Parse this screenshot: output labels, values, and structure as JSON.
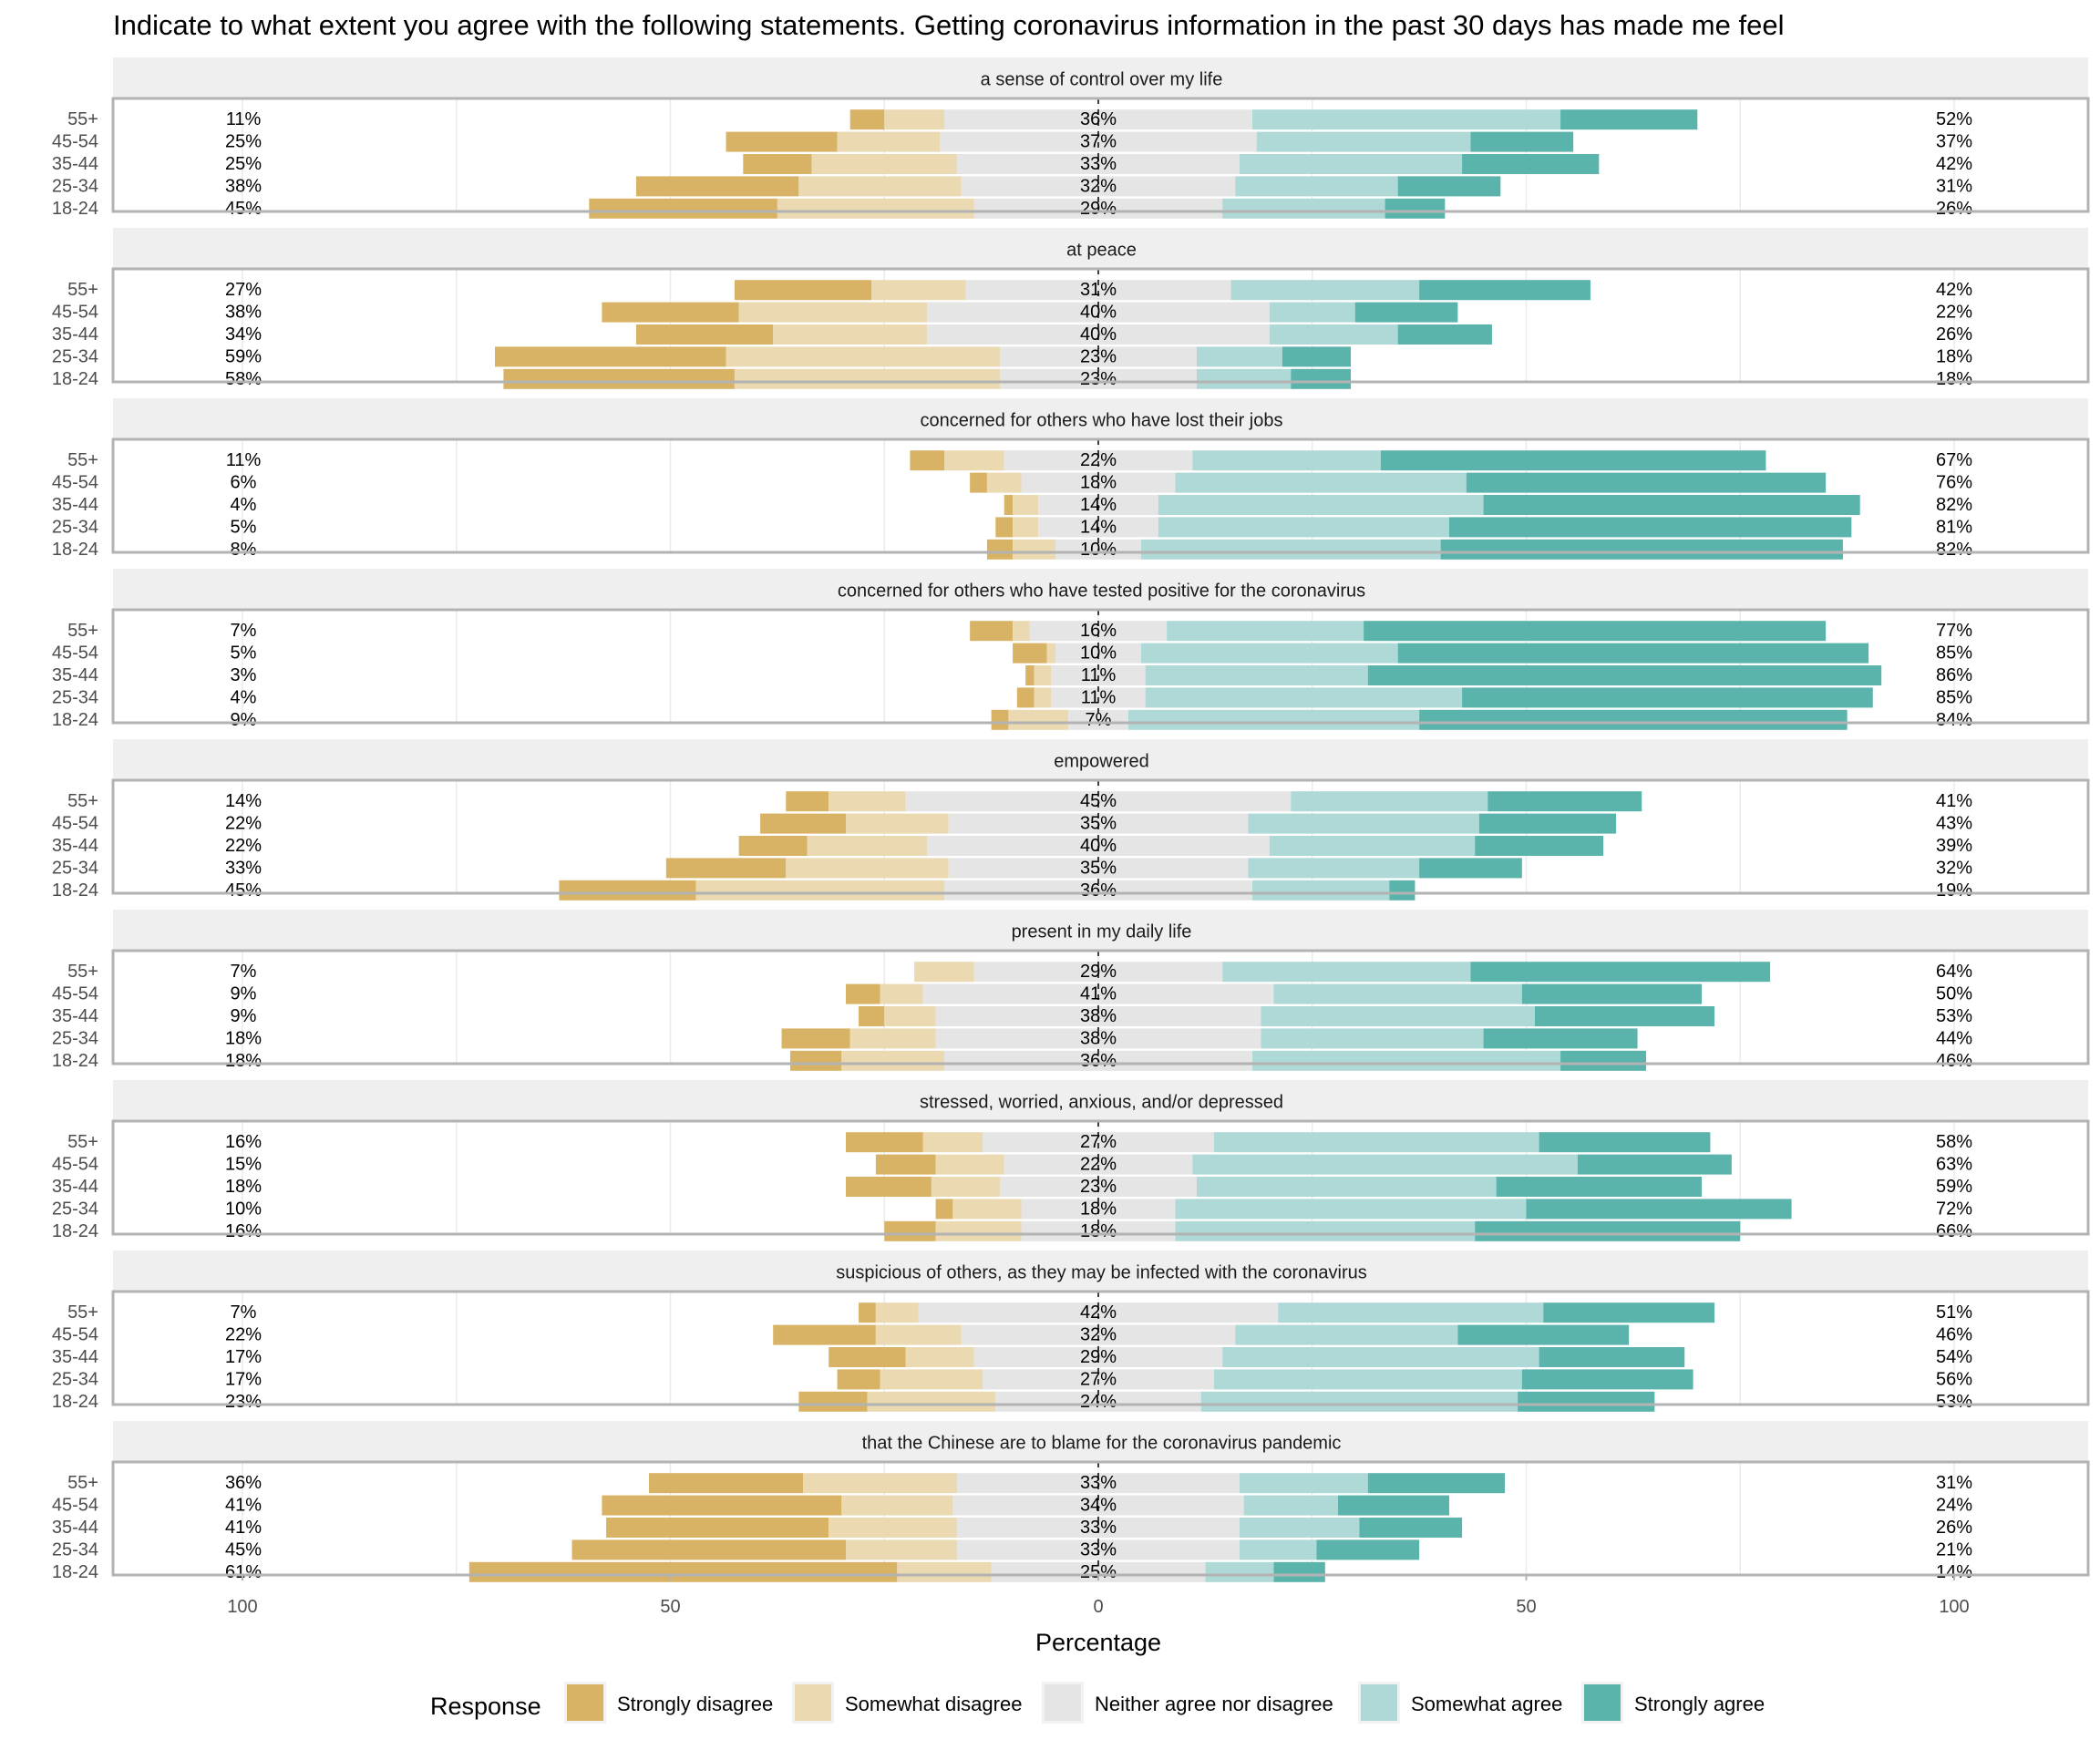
{
  "chart_data": {
    "type": "bar",
    "orientation": "horizontal-diverging-stacked",
    "title": "Indicate to what extent you agree with the following statements. Getting coronavirus information in the past 30 days has made me feel",
    "xlabel": "Percentage",
    "ylabel": "",
    "xlim": [
      -100,
      100
    ],
    "x_ticks": [
      -100,
      -50,
      0,
      50,
      100
    ],
    "x_tick_labels": [
      "100",
      "50",
      "0",
      "50",
      "100"
    ],
    "grid": true,
    "legend": {
      "title": "Response",
      "position": "bottom",
      "entries": [
        "Strongly disagree",
        "Somewhat disagree",
        "Neither agree nor disagree",
        "Somewhat agree",
        "Strongly agree"
      ]
    },
    "colors": {
      "Strongly disagree": "#d8b365",
      "Somewhat disagree": "#ebd9b2",
      "Neither agree nor disagree": "#e5e5e5",
      "Somewhat agree": "#aed9d6",
      "Strongly agree": "#5ab4ac"
    },
    "categories": [
      "55+",
      "45-54",
      "35-44",
      "25-34",
      "18-24"
    ],
    "panels": [
      {
        "label": "a sense of control over my life",
        "rows": [
          {
            "group": "55+",
            "values": [
              4,
              7,
              36,
              36,
              16
            ],
            "left_label": "11%",
            "center_label": "36%",
            "right_label": "52%"
          },
          {
            "group": "45-54",
            "values": [
              13,
              12,
              37,
              25,
              12
            ],
            "left_label": "25%",
            "center_label": "37%",
            "right_label": "37%"
          },
          {
            "group": "35-44",
            "values": [
              8,
              17,
              33,
              26,
              16
            ],
            "left_label": "25%",
            "center_label": "33%",
            "right_label": "42%"
          },
          {
            "group": "25-34",
            "values": [
              19,
              19,
              32,
              19,
              12
            ],
            "left_label": "38%",
            "center_label": "32%",
            "right_label": "31%"
          },
          {
            "group": "18-24",
            "values": [
              22,
              23,
              29,
              19,
              7
            ],
            "left_label": "45%",
            "center_label": "29%",
            "right_label": "26%"
          }
        ]
      },
      {
        "label": "at peace",
        "rows": [
          {
            "group": "55+",
            "values": [
              16,
              11,
              31,
              22,
              20
            ],
            "left_label": "27%",
            "center_label": "31%",
            "right_label": "42%"
          },
          {
            "group": "45-54",
            "values": [
              16,
              22,
              40,
              10,
              12
            ],
            "left_label": "38%",
            "center_label": "40%",
            "right_label": "22%"
          },
          {
            "group": "35-44",
            "values": [
              16,
              18,
              40,
              15,
              11
            ],
            "left_label": "34%",
            "center_label": "40%",
            "right_label": "26%"
          },
          {
            "group": "25-34",
            "values": [
              27,
              32,
              23,
              10,
              8
            ],
            "left_label": "59%",
            "center_label": "23%",
            "right_label": "18%"
          },
          {
            "group": "18-24",
            "values": [
              27,
              31,
              23,
              11,
              7
            ],
            "left_label": "58%",
            "center_label": "23%",
            "right_label": "18%"
          }
        ]
      },
      {
        "label": "concerned for others who have lost their jobs",
        "rows": [
          {
            "group": "55+",
            "values": [
              4,
              7,
              22,
              22,
              45
            ],
            "left_label": "11%",
            "center_label": "22%",
            "right_label": "67%"
          },
          {
            "group": "45-54",
            "values": [
              2,
              4,
              18,
              34,
              42
            ],
            "left_label": "6%",
            "center_label": "18%",
            "right_label": "76%"
          },
          {
            "group": "35-44",
            "values": [
              1,
              3,
              14,
              38,
              44
            ],
            "left_label": "4%",
            "center_label": "14%",
            "right_label": "82%"
          },
          {
            "group": "25-34",
            "values": [
              2,
              3,
              14,
              34,
              47
            ],
            "left_label": "5%",
            "center_label": "14%",
            "right_label": "81%"
          },
          {
            "group": "18-24",
            "values": [
              3,
              5,
              10,
              35,
              47
            ],
            "left_label": "8%",
            "center_label": "10%",
            "right_label": "82%"
          }
        ]
      },
      {
        "label": "concerned for others who have tested positive for the coronavirus",
        "rows": [
          {
            "group": "55+",
            "values": [
              5,
              2,
              16,
              23,
              54
            ],
            "left_label": "7%",
            "center_label": "16%",
            "right_label": "77%"
          },
          {
            "group": "45-54",
            "values": [
              4,
              1,
              10,
              30,
              55
            ],
            "left_label": "5%",
            "center_label": "10%",
            "right_label": "85%"
          },
          {
            "group": "35-44",
            "values": [
              1,
              2,
              11,
              26,
              60
            ],
            "left_label": "3%",
            "center_label": "11%",
            "right_label": "86%"
          },
          {
            "group": "25-34",
            "values": [
              2,
              2,
              11,
              37,
              48
            ],
            "left_label": "4%",
            "center_label": "11%",
            "right_label": "85%"
          },
          {
            "group": "18-24",
            "values": [
              2,
              7,
              7,
              34,
              50
            ],
            "left_label": "9%",
            "center_label": "7%",
            "right_label": "84%"
          }
        ]
      },
      {
        "label": "empowered",
        "rows": [
          {
            "group": "55+",
            "values": [
              5,
              9,
              45,
              23,
              18
            ],
            "left_label": "14%",
            "center_label": "45%",
            "right_label": "41%"
          },
          {
            "group": "45-54",
            "values": [
              10,
              12,
              35,
              27,
              16
            ],
            "left_label": "22%",
            "center_label": "35%",
            "right_label": "43%"
          },
          {
            "group": "35-44",
            "values": [
              8,
              14,
              40,
              24,
              15
            ],
            "left_label": "22%",
            "center_label": "40%",
            "right_label": "39%"
          },
          {
            "group": "25-34",
            "values": [
              14,
              19,
              35,
              20,
              12
            ],
            "left_label": "33%",
            "center_label": "35%",
            "right_label": "32%"
          },
          {
            "group": "18-24",
            "values": [
              16,
              29,
              36,
              16,
              3
            ],
            "left_label": "45%",
            "center_label": "36%",
            "right_label": "19%"
          }
        ]
      },
      {
        "label": "present in my daily life",
        "rows": [
          {
            "group": "55+",
            "values": [
              0,
              7,
              29,
              29,
              35
            ],
            "left_label": "7%",
            "center_label": "29%",
            "right_label": "64%"
          },
          {
            "group": "45-54",
            "values": [
              4,
              5,
              41,
              29,
              21
            ],
            "left_label": "9%",
            "center_label": "41%",
            "right_label": "50%"
          },
          {
            "group": "35-44",
            "values": [
              3,
              6,
              38,
              32,
              21
            ],
            "left_label": "9%",
            "center_label": "38%",
            "right_label": "53%"
          },
          {
            "group": "25-34",
            "values": [
              8,
              10,
              38,
              26,
              18
            ],
            "left_label": "18%",
            "center_label": "38%",
            "right_label": "44%"
          },
          {
            "group": "18-24",
            "values": [
              6,
              12,
              36,
              36,
              10
            ],
            "left_label": "18%",
            "center_label": "36%",
            "right_label": "46%"
          }
        ]
      },
      {
        "label": "stressed, worried, anxious, and/or depressed",
        "rows": [
          {
            "group": "55+",
            "values": [
              9,
              7,
              27,
              38,
              20
            ],
            "left_label": "16%",
            "center_label": "27%",
            "right_label": "58%"
          },
          {
            "group": "45-54",
            "values": [
              7,
              8,
              22,
              45,
              18
            ],
            "left_label": "15%",
            "center_label": "22%",
            "right_label": "63%"
          },
          {
            "group": "35-44",
            "values": [
              10,
              8,
              23,
              35,
              24
            ],
            "left_label": "18%",
            "center_label": "23%",
            "right_label": "59%"
          },
          {
            "group": "25-34",
            "values": [
              2,
              8,
              18,
              41,
              31
            ],
            "left_label": "10%",
            "center_label": "18%",
            "right_label": "72%"
          },
          {
            "group": "18-24",
            "values": [
              6,
              10,
              18,
              35,
              31
            ],
            "left_label": "16%",
            "center_label": "18%",
            "right_label": "66%"
          }
        ]
      },
      {
        "label": "suspicious of others, as they may be infected with the coronavirus",
        "rows": [
          {
            "group": "55+",
            "values": [
              2,
              5,
              42,
              31,
              20
            ],
            "left_label": "7%",
            "center_label": "42%",
            "right_label": "51%"
          },
          {
            "group": "45-54",
            "values": [
              12,
              10,
              32,
              26,
              20
            ],
            "left_label": "22%",
            "center_label": "32%",
            "right_label": "46%"
          },
          {
            "group": "35-44",
            "values": [
              9,
              8,
              29,
              37,
              17
            ],
            "left_label": "17%",
            "center_label": "29%",
            "right_label": "54%"
          },
          {
            "group": "25-34",
            "values": [
              5,
              12,
              27,
              36,
              20
            ],
            "left_label": "17%",
            "center_label": "27%",
            "right_label": "56%"
          },
          {
            "group": "18-24",
            "values": [
              8,
              15,
              24,
              37,
              16
            ],
            "left_label": "23%",
            "center_label": "24%",
            "right_label": "53%"
          }
        ]
      },
      {
        "label": "that the Chinese are to blame for the coronavirus pandemic",
        "rows": [
          {
            "group": "55+",
            "values": [
              18,
              18,
              33,
              15,
              16
            ],
            "left_label": "36%",
            "center_label": "33%",
            "right_label": "31%"
          },
          {
            "group": "45-54",
            "values": [
              28,
              13,
              34,
              11,
              13
            ],
            "left_label": "41%",
            "center_label": "34%",
            "right_label": "24%"
          },
          {
            "group": "35-44",
            "values": [
              26,
              15,
              33,
              14,
              12
            ],
            "left_label": "41%",
            "center_label": "33%",
            "right_label": "26%"
          },
          {
            "group": "25-34",
            "values": [
              32,
              13,
              33,
              9,
              12
            ],
            "left_label": "45%",
            "center_label": "33%",
            "right_label": "21%"
          },
          {
            "group": "18-24",
            "values": [
              50,
              11,
              25,
              8,
              6
            ],
            "left_label": "61%",
            "center_label": "25%",
            "right_label": "14%"
          }
        ]
      }
    ]
  }
}
